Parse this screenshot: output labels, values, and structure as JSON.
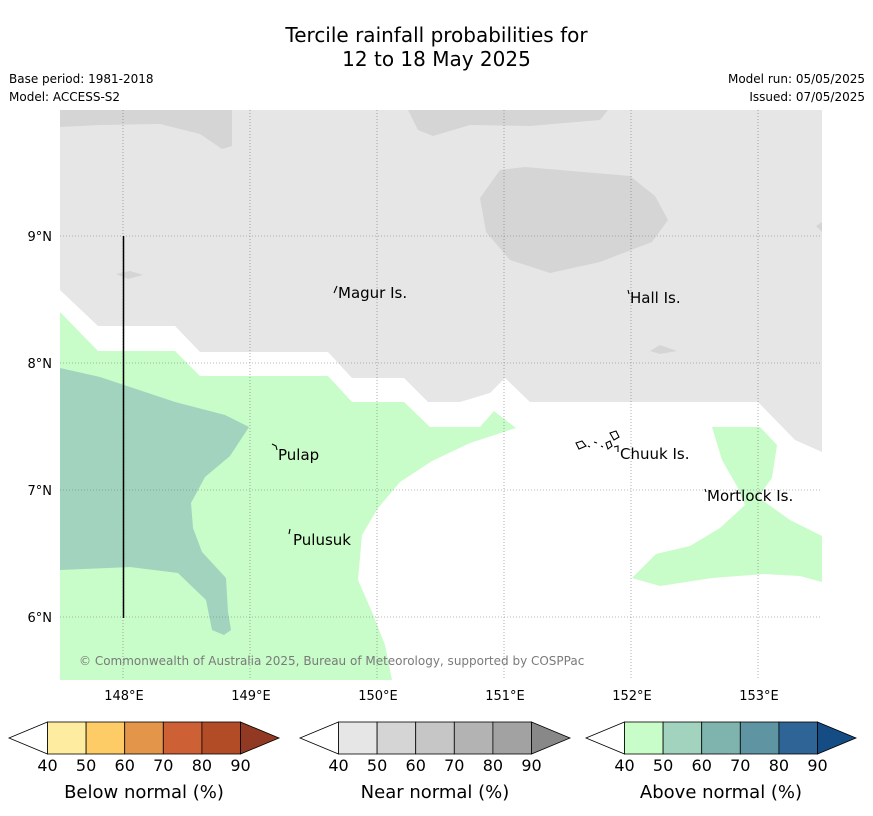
{
  "title": {
    "line1": "Tercile rainfall probabilities for",
    "line2": "12 to 18 May 2025"
  },
  "meta_left": {
    "base_period": "Base period: 1981-2018",
    "model": "Model: ACCESS-S2"
  },
  "meta_right": {
    "model_run": "Model run: 05/05/2025",
    "issued": "Issued: 07/05/2025"
  },
  "map": {
    "lon_labels": [
      "148°E",
      "149°E",
      "150°E",
      "151°E",
      "152°E",
      "153°E"
    ],
    "lat_labels": [
      "9°N",
      "8°N",
      "7°N",
      "6°N"
    ],
    "places": [
      "Magur Is.",
      "Hall Is.",
      "Pulap",
      "Chuuk Is.",
      "Mortlock Is.",
      "Pulusuk"
    ],
    "copyright": "© Commonwealth of Australia 2025, Bureau of Meteorology, supported by COSPPac",
    "colors": {
      "near_normal_40_50": "#e6e6e6",
      "near_normal_50_60": "#d5d5d5",
      "above_normal_40_50": "#c8fcc8",
      "above_normal_50_60": "#a1d3be"
    }
  },
  "legends": [
    {
      "label": "Below normal (%)",
      "ticks": [
        "40",
        "50",
        "60",
        "70",
        "80",
        "90"
      ],
      "colors": [
        "#ffffff",
        "#feeda0",
        "#fdcc67",
        "#e3964a",
        "#cd6135",
        "#b24c26",
        "#913922"
      ]
    },
    {
      "label": "Near normal (%)",
      "ticks": [
        "40",
        "50",
        "60",
        "70",
        "80",
        "90"
      ],
      "colors": [
        "#ffffff",
        "#e6e6e6",
        "#d5d5d5",
        "#c6c6c6",
        "#b3b3b3",
        "#a2a2a2",
        "#888888"
      ]
    },
    {
      "label": "Above normal (%)",
      "ticks": [
        "40",
        "50",
        "60",
        "70",
        "80",
        "90"
      ],
      "colors": [
        "#ffffff",
        "#c8fcc8",
        "#a1d3be",
        "#7fb4ae",
        "#5f94a3",
        "#2f6497",
        "#154c84"
      ]
    }
  ]
}
